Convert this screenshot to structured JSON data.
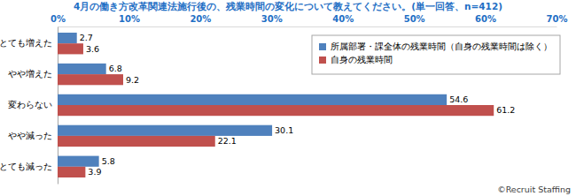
{
  "chart_data": {
    "type": "bar",
    "orientation": "horizontal",
    "title": "4月の働き方改革関連法施行後の、残業時間の変化について教えてください。(単一回答、n=412)",
    "categories": [
      "とても増えた",
      "やや増えた",
      "変わらない",
      "やや減った",
      "とても減った"
    ],
    "series": [
      {
        "name": "所属部署・課全体の残業時間（自身の残業時間は除く）",
        "color": "#4f81bd",
        "values": [
          2.7,
          6.8,
          54.6,
          30.1,
          5.8
        ]
      },
      {
        "name": "自身の残業時間",
        "color": "#c0504d",
        "values": [
          3.6,
          9.2,
          61.2,
          22.1,
          3.9
        ]
      }
    ],
    "xlim": [
      0,
      70
    ],
    "xticks": [
      {
        "value": 0,
        "label": "0%"
      },
      {
        "value": 10,
        "label": "10%"
      },
      {
        "value": 20,
        "label": "20%"
      },
      {
        "value": 30,
        "label": "30%"
      },
      {
        "value": 40,
        "label": "40%"
      },
      {
        "value": 50,
        "label": "50%"
      },
      {
        "value": 60,
        "label": "60%"
      },
      {
        "value": 70,
        "label": "70%"
      }
    ],
    "grid": false,
    "legend": "top-right",
    "data_labels": true,
    "annotations": [
      "©Recruit Staffing"
    ]
  }
}
